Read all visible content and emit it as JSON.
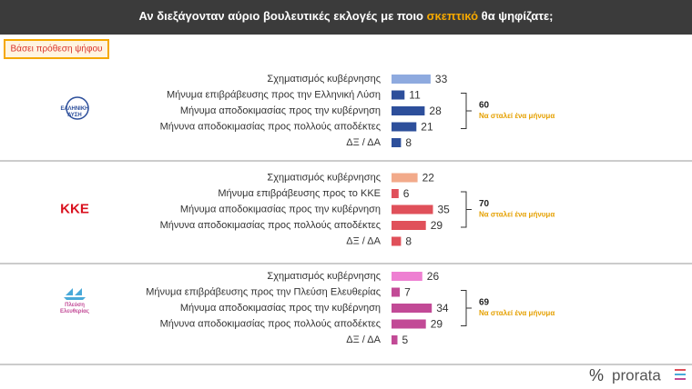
{
  "header": {
    "title_parts": [
      "Αν διεξάγονταν αύριο βουλευτικές εκλογές με ποιο ",
      "σκεπτικό",
      " θα ψηφίζατε;"
    ],
    "badge": "Βάσει πρόθεση ψήφου"
  },
  "chart_data": [
    {
      "type": "bar",
      "logo_text": [
        "ΕΛΛΗΝΙΚΗ",
        "ΛΥΣΗ"
      ],
      "categories": [
        "Σχηματισμός κυβέρνησης",
        "Μήνυμα επιβράβευσης προς την Ελληνική Λύση",
        "Μήνυμα αποδοκιμασίας προς την κυβέρνηση",
        "Μήνυνα αποδοκιμασίας προς πολλούς αποδέκτες",
        "ΔΞ / ΔΑ"
      ],
      "values": [
        33,
        11,
        28,
        21,
        8
      ],
      "colors": [
        "#8eaadf",
        "#2d4f9b",
        "#2d4f9b",
        "#2d4f9b",
        "#2d4f9b"
      ],
      "bracket_value": 60,
      "bracket_label": "Να σταλεί ένα μήνυμα"
    },
    {
      "type": "bar",
      "logo_text": [
        "ΚΚΕ"
      ],
      "categories": [
        "Σχηματισμός κυβέρνησης",
        "Μήνυμα επιβράβευσης προς το ΚΚΕ",
        "Μήνυμα αποδοκιμασίας προς την κυβέρνηση",
        "Μήνυνα αποδοκιμασίας προς πολλούς αποδέκτες",
        "ΔΞ / ΔΑ"
      ],
      "values": [
        22,
        6,
        35,
        29,
        8
      ],
      "colors": [
        "#f2aa8a",
        "#e0505a",
        "#e0505a",
        "#e0505a",
        "#e0505a"
      ],
      "bracket_value": 70,
      "bracket_label": "Να σταλεί ένα μήνυμα"
    },
    {
      "type": "bar",
      "logo_text": [
        "Πλεύση",
        "Ελευθερίας"
      ],
      "categories": [
        "Σχηματισμός κυβέρνησης",
        "Μήνυμα επιβράβευσης προς την Πλεύση Ελευθερίας",
        "Μήνυμα αποδοκιμασίας προς την κυβέρνηση",
        "Μήνυνα αποδοκιμασίας προς πολλούς αποδέκτες",
        "ΔΞ / ΔΑ"
      ],
      "values": [
        26,
        7,
        34,
        29,
        5
      ],
      "colors": [
        "#ee80d2",
        "#c24a96",
        "#c24a96",
        "#c24a96",
        "#c24a96"
      ],
      "bracket_value": 69,
      "bracket_label": "Να σταλεί ένα μήνυμα"
    }
  ],
  "footer": {
    "symbol": "%",
    "brand": "prorata"
  }
}
